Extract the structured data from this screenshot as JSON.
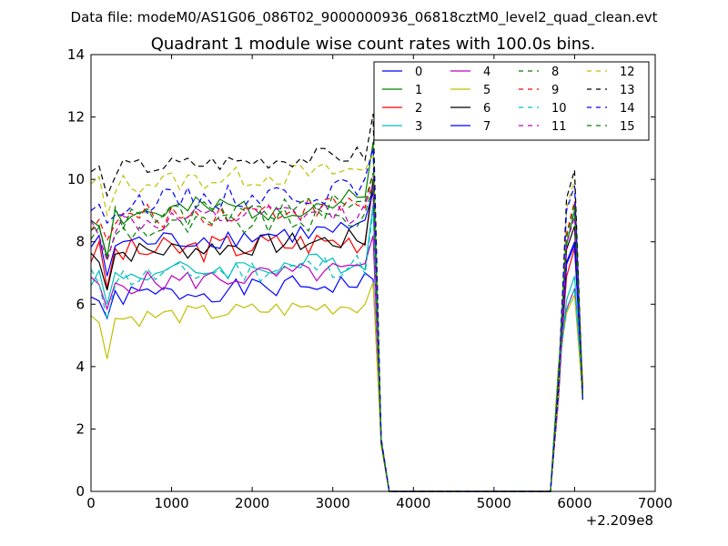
{
  "header": {
    "datafile": "Data file: modeM0/AS1G06_086T02_9000000936_06818cztM0_level2_quad_clean.evt"
  },
  "chart_data": {
    "type": "line",
    "title": "Quadrant 1 module wise count rates with 100.0s bins.",
    "xlabel": "",
    "ylabel": "",
    "x_offset_label": "+2.209e8",
    "xlim": [
      0,
      7000
    ],
    "ylim": [
      0,
      14
    ],
    "xticks": [
      0,
      1000,
      2000,
      3000,
      4000,
      5000,
      6000,
      7000
    ],
    "yticks": [
      0,
      2,
      4,
      6,
      8,
      10,
      12,
      14
    ],
    "grid": false,
    "legend_position": "top-right",
    "legend_columns": 4,
    "series": [
      {
        "name": "0",
        "color": "#0000ff",
        "dash": "solid",
        "base": 6.2,
        "amp": 0.35,
        "spikes": [
          6.8,
          8.0
        ]
      },
      {
        "name": "1",
        "color": "#008000",
        "dash": "solid",
        "base": 8.8,
        "amp": 0.45,
        "spikes": [
          11.2,
          9.0
        ]
      },
      {
        "name": "2",
        "color": "#ff0000",
        "dash": "solid",
        "base": 7.6,
        "amp": 0.45,
        "spikes": [
          9.8,
          7.8
        ]
      },
      {
        "name": "3",
        "color": "#00bfbf",
        "dash": "solid",
        "base": 6.9,
        "amp": 0.35,
        "spikes": [
          9.2,
          6.9
        ]
      },
      {
        "name": "4",
        "color": "#bf00bf",
        "dash": "solid",
        "base": 6.6,
        "amp": 0.35,
        "spikes": [
          8.2,
          6.5
        ]
      },
      {
        "name": "5",
        "color": "#bfbf00",
        "dash": "solid",
        "base": 5.5,
        "amp": 0.3,
        "spikes": [
          6.7,
          6.3
        ]
      },
      {
        "name": "6",
        "color": "#000000",
        "dash": "solid",
        "base": 7.6,
        "amp": 0.35,
        "spikes": [
          10.0,
          8.5
        ]
      },
      {
        "name": "7",
        "color": "#0000ff",
        "dash": "solid",
        "base": 7.9,
        "amp": 0.35,
        "spikes": [
          9.6,
          7.9
        ]
      },
      {
        "name": "8",
        "color": "#008000",
        "dash": "dashed",
        "base": 8.3,
        "amp": 0.4,
        "spikes": [
          9.8,
          9.0
        ]
      },
      {
        "name": "9",
        "color": "#ff0000",
        "dash": "dashed",
        "base": 8.7,
        "amp": 0.4,
        "spikes": [
          10.2,
          9.3
        ]
      },
      {
        "name": "10",
        "color": "#00bfbf",
        "dash": "dashed",
        "base": 6.8,
        "amp": 0.4,
        "spikes": [
          9.0,
          6.5
        ]
      },
      {
        "name": "11",
        "color": "#bf00bf",
        "dash": "dashed",
        "base": 8.5,
        "amp": 0.4,
        "spikes": [
          9.8,
          8.8
        ]
      },
      {
        "name": "12",
        "color": "#bfbf00",
        "dash": "dashed",
        "base": 9.8,
        "amp": 0.35,
        "spikes": [
          10.8,
          10.0
        ]
      },
      {
        "name": "13",
        "color": "#000000",
        "dash": "dashed",
        "base": 10.3,
        "amp": 0.3,
        "spikes": [
          12.1,
          10.3
        ]
      },
      {
        "name": "14",
        "color": "#0000ff",
        "dash": "dashed",
        "base": 9.2,
        "amp": 0.4,
        "spikes": [
          11.0,
          9.8
        ]
      },
      {
        "name": "15",
        "color": "#008000",
        "dash": "dashed",
        "base": 8.7,
        "amp": 0.4,
        "spikes": [
          10.2,
          9.2
        ]
      }
    ]
  }
}
